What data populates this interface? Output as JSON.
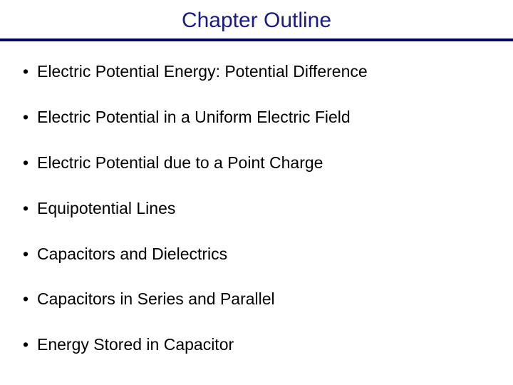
{
  "title": "Chapter Outline",
  "title_color": "#1a1a8a",
  "divider_color": "#000066",
  "text_color": "#000000",
  "background_color": "#ffffff",
  "items": [
    "Electric Potential Energy: Potential Difference",
    "Electric Potential in a Uniform Electric Field",
    "Electric Potential due to a Point Charge",
    "Equipotential Lines",
    "Capacitors and Dielectrics",
    "Capacitors in Series and Parallel",
    "Energy Stored in Capacitor"
  ]
}
